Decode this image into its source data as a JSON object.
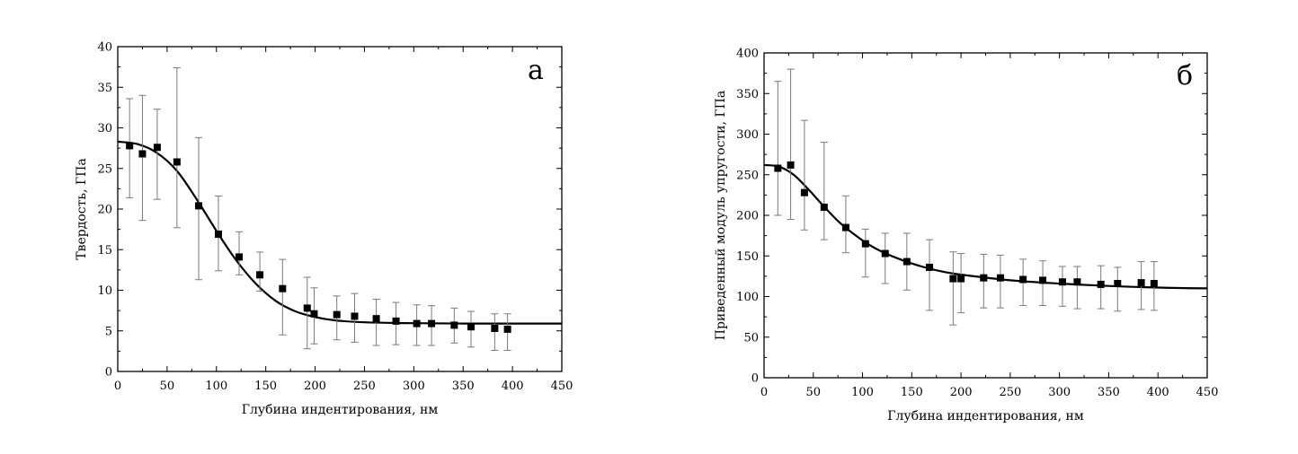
{
  "chart_data": [
    {
      "type": "scatter",
      "panel_label": "а",
      "xlabel": "Глубина индентирования, нм",
      "ylabel": "Твердость, ГПа",
      "xlim": [
        0,
        450
      ],
      "ylim": [
        0,
        40
      ],
      "xticks": [
        0,
        50,
        100,
        150,
        200,
        250,
        300,
        350,
        400,
        450
      ],
      "yticks": [
        0,
        5,
        10,
        15,
        20,
        25,
        30,
        35,
        40
      ],
      "grid": false,
      "marker": "square",
      "series": [
        {
          "points": [
            {
              "x": 12,
              "y": 27.8,
              "err_low": 21.4,
              "err_high": 33.6
            },
            {
              "x": 25,
              "y": 26.8,
              "err_low": 18.6,
              "err_high": 34.0
            },
            {
              "x": 40,
              "y": 27.6,
              "err_low": 21.2,
              "err_high": 32.3
            },
            {
              "x": 60,
              "y": 25.8,
              "err_low": 17.7,
              "err_high": 37.4
            },
            {
              "x": 82,
              "y": 20.4,
              "err_low": 11.3,
              "err_high": 28.8
            },
            {
              "x": 102,
              "y": 16.9,
              "err_low": 12.4,
              "err_high": 21.6
            },
            {
              "x": 123,
              "y": 14.1,
              "err_low": 11.9,
              "err_high": 17.2
            },
            {
              "x": 144,
              "y": 11.9,
              "err_low": 9.9,
              "err_high": 14.7
            },
            {
              "x": 167,
              "y": 10.2,
              "err_low": 4.5,
              "err_high": 13.8
            },
            {
              "x": 192,
              "y": 7.8,
              "err_low": 2.8,
              "err_high": 11.6
            },
            {
              "x": 199,
              "y": 7.1,
              "err_low": 3.4,
              "err_high": 10.3
            },
            {
              "x": 222,
              "y": 7.0,
              "err_low": 3.9,
              "err_high": 9.3
            },
            {
              "x": 240,
              "y": 6.8,
              "err_low": 3.6,
              "err_high": 9.6
            },
            {
              "x": 262,
              "y": 6.5,
              "err_low": 3.2,
              "err_high": 8.9
            },
            {
              "x": 282,
              "y": 6.2,
              "err_low": 3.3,
              "err_high": 8.5
            },
            {
              "x": 303,
              "y": 5.9,
              "err_low": 3.2,
              "err_high": 8.2
            },
            {
              "x": 318,
              "y": 5.9,
              "err_low": 3.2,
              "err_high": 8.1
            },
            {
              "x": 341,
              "y": 5.7,
              "err_low": 3.5,
              "err_high": 7.8
            },
            {
              "x": 358,
              "y": 5.5,
              "err_low": 3.0,
              "err_high": 7.4
            },
            {
              "x": 382,
              "y": 5.3,
              "err_low": 2.6,
              "err_high": 7.1
            },
            {
              "x": 395,
              "y": 5.2,
              "err_low": 2.6,
              "err_high": 7.1
            }
          ]
        }
      ],
      "fit_curve": {
        "x": [
          0,
          20,
          40,
          60,
          80,
          100,
          120,
          140,
          160,
          180,
          200,
          220,
          250,
          300,
          350,
          400,
          450
        ],
        "y": [
          28.3,
          28.0,
          26.9,
          24.7,
          21.2,
          17.3,
          13.7,
          10.8,
          8.7,
          7.4,
          6.7,
          6.3,
          6.05,
          5.95,
          5.9,
          5.9,
          5.9
        ]
      }
    },
    {
      "type": "scatter",
      "panel_label": "б",
      "xlabel": "Глубина индентирования, нм",
      "ylabel": "Приведенный модуль упругости, ГПа",
      "xlim": [
        0,
        450
      ],
      "ylim": [
        0,
        400
      ],
      "xticks": [
        0,
        50,
        100,
        150,
        200,
        250,
        300,
        350,
        400,
        450
      ],
      "yticks": [
        0,
        50,
        100,
        150,
        200,
        250,
        300,
        350,
        400
      ],
      "grid": false,
      "marker": "square",
      "series": [
        {
          "points": [
            {
              "x": 14,
              "y": 258,
              "err_low": 200,
              "err_high": 365
            },
            {
              "x": 27,
              "y": 262,
              "err_low": 195,
              "err_high": 380
            },
            {
              "x": 41,
              "y": 228,
              "err_low": 182,
              "err_high": 317
            },
            {
              "x": 61,
              "y": 210,
              "err_low": 170,
              "err_high": 290
            },
            {
              "x": 83,
              "y": 185,
              "err_low": 154,
              "err_high": 224
            },
            {
              "x": 103,
              "y": 165,
              "err_low": 124,
              "err_high": 183
            },
            {
              "x": 123,
              "y": 153,
              "err_low": 116,
              "err_high": 178
            },
            {
              "x": 145,
              "y": 143,
              "err_low": 108,
              "err_high": 178
            },
            {
              "x": 168,
              "y": 136,
              "err_low": 83,
              "err_high": 170
            },
            {
              "x": 192,
              "y": 122,
              "err_low": 65,
              "err_high": 155
            },
            {
              "x": 200,
              "y": 122,
              "err_low": 80,
              "err_high": 153
            },
            {
              "x": 223,
              "y": 123,
              "err_low": 86,
              "err_high": 152
            },
            {
              "x": 240,
              "y": 123,
              "err_low": 86,
              "err_high": 151
            },
            {
              "x": 263,
              "y": 121,
              "err_low": 89,
              "err_high": 146
            },
            {
              "x": 283,
              "y": 120,
              "err_low": 89,
              "err_high": 144
            },
            {
              "x": 303,
              "y": 118,
              "err_low": 88,
              "err_high": 137
            },
            {
              "x": 318,
              "y": 118,
              "err_low": 85,
              "err_high": 137
            },
            {
              "x": 342,
              "y": 115,
              "err_low": 85,
              "err_high": 138
            },
            {
              "x": 359,
              "y": 116,
              "err_low": 82,
              "err_high": 136
            },
            {
              "x": 383,
              "y": 117,
              "err_low": 84,
              "err_high": 143
            },
            {
              "x": 396,
              "y": 116,
              "err_low": 83,
              "err_high": 143
            }
          ]
        }
      ],
      "fit_curve": {
        "x": [
          0,
          15,
          30,
          45,
          60,
          75,
          90,
          105,
          120,
          140,
          160,
          180,
          200,
          250,
          300,
          350,
          400,
          450
        ],
        "y": [
          262,
          260,
          250,
          232,
          212,
          193,
          178,
          165,
          155,
          145,
          137,
          131,
          127,
          120,
          116,
          113,
          111,
          110
        ]
      }
    }
  ]
}
